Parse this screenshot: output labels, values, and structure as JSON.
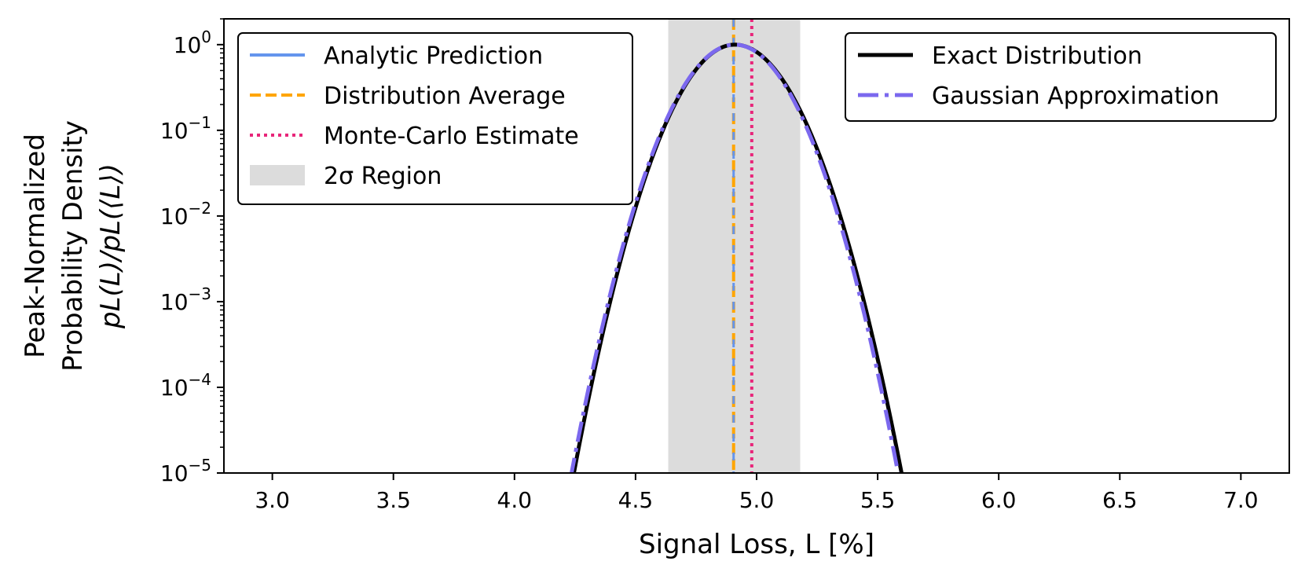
{
  "chart_data": {
    "type": "line",
    "xlabel": "Signal Loss, L [%]",
    "ylabel": {
      "line1": "Peak-Normalized",
      "line2": "Probability Density",
      "line3": "pL(L)/pL(⟨L⟩)"
    },
    "x_range": [
      2.8,
      7.2
    ],
    "y_range": [
      1e-05,
      2
    ],
    "y_scale": "log",
    "x_ticks": [
      "3.0",
      "3.5",
      "4.0",
      "4.5",
      "5.0",
      "5.5",
      "6.0",
      "6.5",
      "7.0"
    ],
    "x_tick_values": [
      3.0,
      3.5,
      4.0,
      4.5,
      5.0,
      5.5,
      6.0,
      6.5,
      7.0
    ],
    "y_ticks": [
      {
        "base": "10",
        "exp": "0",
        "value": 1
      },
      {
        "base": "10",
        "exp": "−1",
        "value": 0.1
      },
      {
        "base": "10",
        "exp": "−2",
        "value": 0.01
      },
      {
        "base": "10",
        "exp": "−3",
        "value": 0.001
      },
      {
        "base": "10",
        "exp": "−4",
        "value": 0.0001
      },
      {
        "base": "10",
        "exp": "−5",
        "value": 1e-05
      }
    ],
    "series": [
      {
        "name": "Exact Distribution",
        "type": "curve",
        "peak": 4.91,
        "sigma_left": 0.1385,
        "sigma_right": 0.1435
      },
      {
        "name": "Gaussian Approximation",
        "type": "curve",
        "peak": 4.91,
        "sigma_left": 0.1405,
        "sigma_right": 0.1405
      }
    ],
    "vertical_lines": [
      {
        "name": "Analytic Prediction",
        "x": 4.905
      },
      {
        "name": "Distribution Average",
        "x": 4.905
      },
      {
        "name": "Monte-Carlo Estimate",
        "x": 4.98
      }
    ],
    "shaded_region": {
      "name": "2σ Region",
      "x_from": 4.635,
      "x_to": 5.18
    },
    "legend_left": {
      "position": "top-left",
      "entries": [
        "Analytic Prediction",
        "Distribution Average",
        "Monte-Carlo Estimate",
        "2σ Region"
      ]
    },
    "legend_right": {
      "position": "top-right",
      "entries": [
        "Exact Distribution",
        "Gaussian Approximation"
      ]
    },
    "colors": {
      "analytic": "#6495ed",
      "average": "#ffa500",
      "monte_carlo": "#e8267a",
      "region": "#dcdcdc",
      "exact": "#000000",
      "gaussian": "#7b68ee"
    }
  }
}
